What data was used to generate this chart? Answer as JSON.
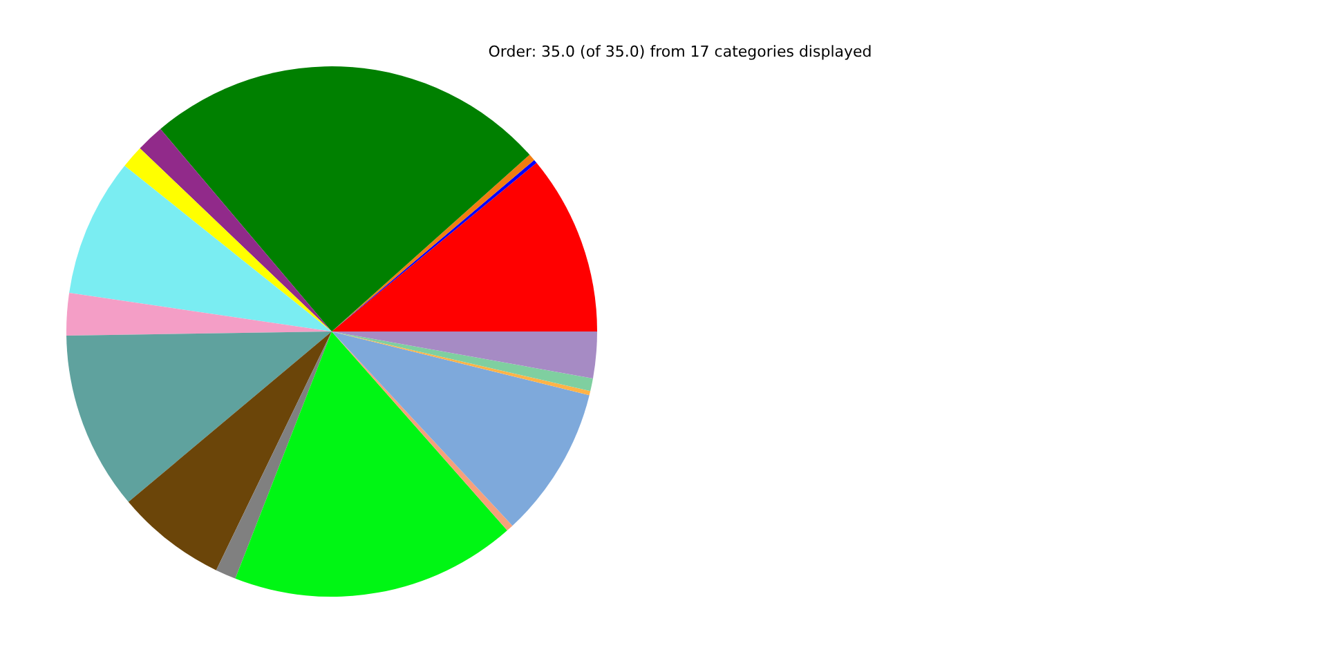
{
  "chart_data": {
    "type": "pie",
    "title": "Order: 35.0 (of 35.0) from 17 categories displayed",
    "categories": [
      null,
      null,
      null,
      null,
      null,
      null,
      null,
      null,
      null,
      null,
      null,
      null,
      null,
      null,
      null,
      null,
      null
    ],
    "values": [
      10.97,
      0.22,
      0.42,
      24.56,
      1.69,
      1.39,
      8.42,
      2.58,
      10.86,
      6.72,
      1.25,
      17.42,
      0.42,
      9.22,
      0.25,
      0.78,
      2.83
    ],
    "colors": [
      "#ff0000",
      "#0000ff",
      "#f07c10",
      "#008000",
      "#912a8a",
      "#ffff00",
      "#7aedf2",
      "#f49ec6",
      "#5fa29e",
      "#6b4509",
      "#808080",
      "#00f614",
      "#f7a07a",
      "#7ea9db",
      "#ffb347",
      "#7fcfa0",
      "#a68bc4"
    ]
  }
}
